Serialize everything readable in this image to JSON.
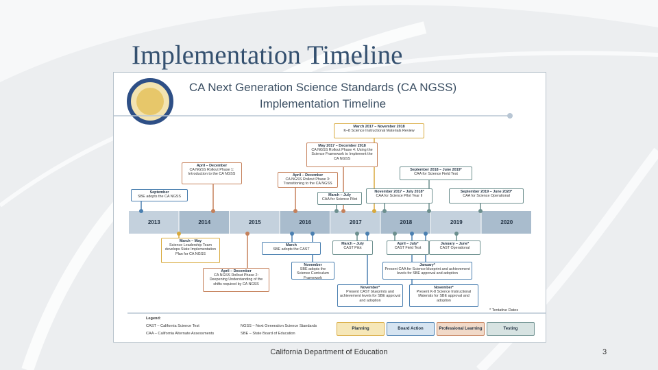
{
  "slide": {
    "title": "Implementation Timeline",
    "footer": "California Department of Education",
    "page_number": "3"
  },
  "figure": {
    "title_line_1": "CA Next Generation Science Standards (CA NGSS)",
    "title_line_2": "Implementation Timeline",
    "years": [
      "2013",
      "2014",
      "2015",
      "2016",
      "2017",
      "2018",
      "2019",
      "2020"
    ],
    "events": [
      {
        "date": "September",
        "text": "SBE adopts the CA NGSS"
      },
      {
        "date": "April – December",
        "text": "CA NGSS Rollout Phase 1: Introduction to the CA NGSS"
      },
      {
        "date": "April – December",
        "text": "CA NGSS Rollout Phase 3: Transitioning to the CA NGSS"
      },
      {
        "date": "May 2017 – December 2018",
        "text": "CA NGSS Rollout Phase 4: Using the Science Framework to Implement the CA NGSS"
      },
      {
        "date": "March 2017 – November 2018",
        "text": "K–8 Science Instructional Materials Review"
      },
      {
        "date": "March – July",
        "text": "CAA for Science Pilot"
      },
      {
        "date": "November 2017 – July 2018*",
        "text": "CAA for Science Pilot Year II"
      },
      {
        "date": "September 2018 – June 2019*",
        "text": "CAA for Science Field Test"
      },
      {
        "date": "September 2019 – June 2020*",
        "text": "CAA for Science Operational"
      },
      {
        "date": "March – May",
        "text": "Science Leadership Team develops State Implementation Plan for CA NGSS"
      },
      {
        "date": "March",
        "text": "SBE adopts the CAST"
      },
      {
        "date": "April – December",
        "text": "CA NGSS Rollout Phase 2: Deepening Understanding of the shifts required by CA NGSS"
      },
      {
        "date": "November",
        "text": "SBE adopts the Science Curriculum Framework"
      },
      {
        "date": "March – July",
        "text": "CAST Pilot"
      },
      {
        "date": "April – July*",
        "text": "CAST Field Test"
      },
      {
        "date": "January – June*",
        "text": "CAST Operational"
      },
      {
        "date": "January*",
        "text": "Present CAA for Science blueprint and achievement levels for SBE approval and adoption"
      },
      {
        "date": "November*",
        "text": "Present CAST blueprints and achievement levels for SBE approval and adoption"
      },
      {
        "date": "November*",
        "text": "Present K-8 Science Instructional Materials for SBE approval and adoption"
      }
    ],
    "footnote": "* Tentative Dates",
    "legend": {
      "title": "Legend:",
      "abbreviations": [
        "CAST – California Science Test",
        "CAA – California Alternate Assessments",
        "NGSS – Next Generation Science Standards",
        "SBE – State Board of Education"
      ],
      "categories": [
        "Planning",
        "Board Action",
        "Professional Learning",
        "Testing"
      ]
    }
  }
}
